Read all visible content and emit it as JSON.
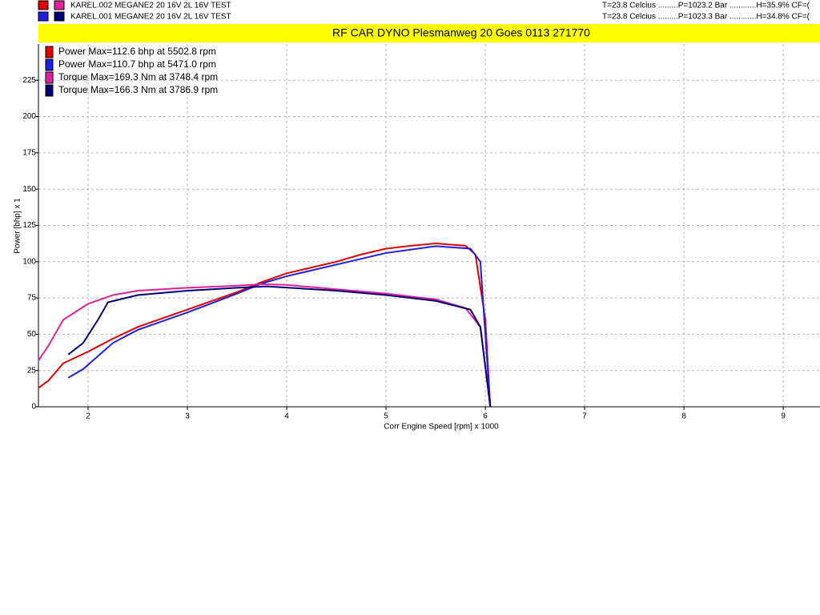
{
  "header": {
    "runs": [
      {
        "name": "KAREL.002 MEGANE2 20 16V   2L 16V TEST",
        "conditions": "T=23.8 Celcius .........P=1023.2 Bar ............H=35.9% CF=("
      },
      {
        "name": "KAREL.001 MEGANE2 20 16V   2L 16V TEST",
        "conditions": "T=23.8 Celcius .........P=1023.3 Bar ............H=34.8% CF=("
      }
    ]
  },
  "chart_data": {
    "type": "line",
    "title": "RF CAR DYNO  Plesmanweg 20 Goes  0113 271770",
    "x_label": "Corr Engine Speed [rpm] x 1000",
    "y_label": "Power [bhp] x 1",
    "xlim": [
      1.5,
      9.37
    ],
    "xticks": [
      2,
      3,
      4,
      5,
      6,
      7,
      8,
      9
    ],
    "ylim": [
      0,
      250
    ],
    "yticks": [
      0,
      25,
      50,
      75,
      100,
      125,
      150,
      175,
      200,
      225
    ],
    "grid": true,
    "legend": "upper-left",
    "series": [
      {
        "name": "Power  Max=112.6 bhp at 5502.8 rpm",
        "color": "#e00000",
        "x": [
          1.5,
          1.6,
          1.75,
          2,
          2.25,
          2.5,
          3,
          3.5,
          3.75,
          4,
          4.5,
          4.75,
          5,
          5.25,
          5.5,
          5.8,
          5.9,
          6.0,
          6.05
        ],
        "values": [
          13,
          18,
          30,
          38,
          47,
          55,
          67,
          79,
          86,
          92,
          100,
          105,
          109,
          111,
          112.6,
          111,
          105,
          60,
          0
        ]
      },
      {
        "name": "Power  Max=110.7 bhp at 5471.0 rpm",
        "color": "#2020e0",
        "x": [
          1.8,
          1.95,
          2.1,
          2.25,
          2.5,
          3,
          3.5,
          3.75,
          4,
          4.5,
          5,
          5.5,
          5.85,
          5.95,
          6.05
        ],
        "values": [
          20,
          26,
          35,
          44,
          53,
          65,
          78,
          85,
          90,
          98,
          106,
          110.7,
          109,
          100,
          0
        ]
      },
      {
        "name": "Torque  Max=169.3 Nm at 3748.4 rpm",
        "color": "#e0209a",
        "x": [
          1.5,
          1.6,
          1.75,
          2,
          2.25,
          2.5,
          3,
          3.5,
          3.75,
          4,
          4.5,
          5,
          5.5,
          5.8,
          5.95,
          6.05
        ],
        "values": [
          32,
          42,
          60,
          71,
          77,
          80,
          82,
          83.5,
          84.5,
          84,
          81,
          78,
          74,
          68,
          55,
          0
        ]
      },
      {
        "name": "Torque  Max=166.3 Nm at 3786.9 rpm",
        "color": "#000070",
        "x": [
          1.8,
          1.95,
          2.1,
          2.2,
          2.5,
          3,
          3.5,
          3.8,
          4.5,
          5,
          5.5,
          5.85,
          5.95,
          6.05
        ],
        "values": [
          36,
          44,
          60,
          72,
          77,
          80,
          82,
          83,
          80,
          77,
          73,
          67,
          55,
          0
        ]
      }
    ]
  }
}
